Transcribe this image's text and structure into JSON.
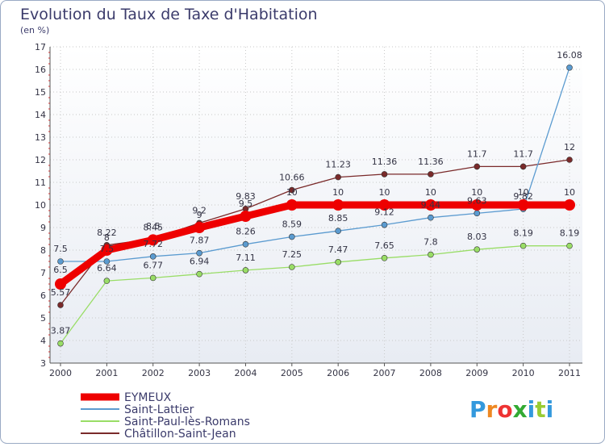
{
  "chart_data": {
    "type": "line",
    "title": "Evolution du Taux de Taxe d'Habitation",
    "ylabel": "(en %)",
    "xlabel": "",
    "ylim": [
      3,
      17
    ],
    "y_ticks": [
      "3",
      "4",
      "5",
      "6",
      "7",
      "8",
      "9",
      "10",
      "11",
      "12",
      "13",
      "14",
      "15",
      "16",
      "17"
    ],
    "categories": [
      "2000",
      "2001",
      "2002",
      "2003",
      "2004",
      "2005",
      "2006",
      "2007",
      "2008",
      "2009",
      "2010",
      "2011"
    ],
    "series": [
      {
        "name": "EYMEUX",
        "color": "#ee0000",
        "values": [
          6.5,
          8,
          8.45,
          9,
          9.5,
          10,
          10,
          10,
          10,
          10,
          10,
          10
        ],
        "labels": [
          "6.5",
          "8",
          "8.45",
          "9",
          "9.5",
          "10",
          "10",
          "10",
          "10",
          "10",
          "10",
          "10"
        ]
      },
      {
        "name": "Saint-Lattier",
        "color": "#5b9bd0",
        "values": [
          7.5,
          7.5,
          7.72,
          7.87,
          8.26,
          8.59,
          8.85,
          9.12,
          9.44,
          9.63,
          9.82,
          16.08
        ],
        "labels": [
          "7.5",
          "7.5",
          "7.72",
          "7.87",
          "8.26",
          "8.59",
          "8.85",
          "9.12",
          "9.44",
          "9.63",
          "9.82",
          "16.08"
        ]
      },
      {
        "name": "Saint-Paul-lès-Romans",
        "color": "#99dd66",
        "values": [
          3.87,
          6.64,
          6.77,
          6.94,
          7.11,
          7.25,
          7.47,
          7.65,
          7.8,
          8.03,
          8.19,
          8.19
        ],
        "labels": [
          "3.87",
          "6.64",
          "6.77",
          "6.94",
          "7.11",
          "7.25",
          "7.47",
          "7.65",
          "7.8",
          "8.03",
          "8.19",
          "8.19"
        ]
      },
      {
        "name": "Châtillon-Saint-Jean",
        "color": "#7a2a2a",
        "values": [
          5.57,
          8.22,
          8.5,
          9.2,
          9.83,
          10.66,
          11.23,
          11.36,
          11.36,
          11.7,
          11.7,
          12
        ],
        "labels": [
          "5.57",
          "8.22",
          "8.5",
          "9.2",
          "9.83",
          "10.66",
          "11.23",
          "11.36",
          "11.36",
          "11.7",
          "11.7",
          "12"
        ]
      }
    ],
    "legend_position": "bottom-left"
  },
  "logo": {
    "text": "Proxiti",
    "colors": [
      "#3399dd",
      "#ee8822",
      "#ee3333",
      "#33aa33",
      "#3399dd",
      "#99cc33",
      "#3399dd"
    ]
  },
  "ui": {
    "background": "#ffffff",
    "plot_bg_top": "#ffffff",
    "plot_bg_bottom": "#e8ecf3",
    "border_color": "#9aaac4",
    "grid_color": "#c8c8c8",
    "text_color": "#333344",
    "title_color": "#3b3b6b"
  }
}
